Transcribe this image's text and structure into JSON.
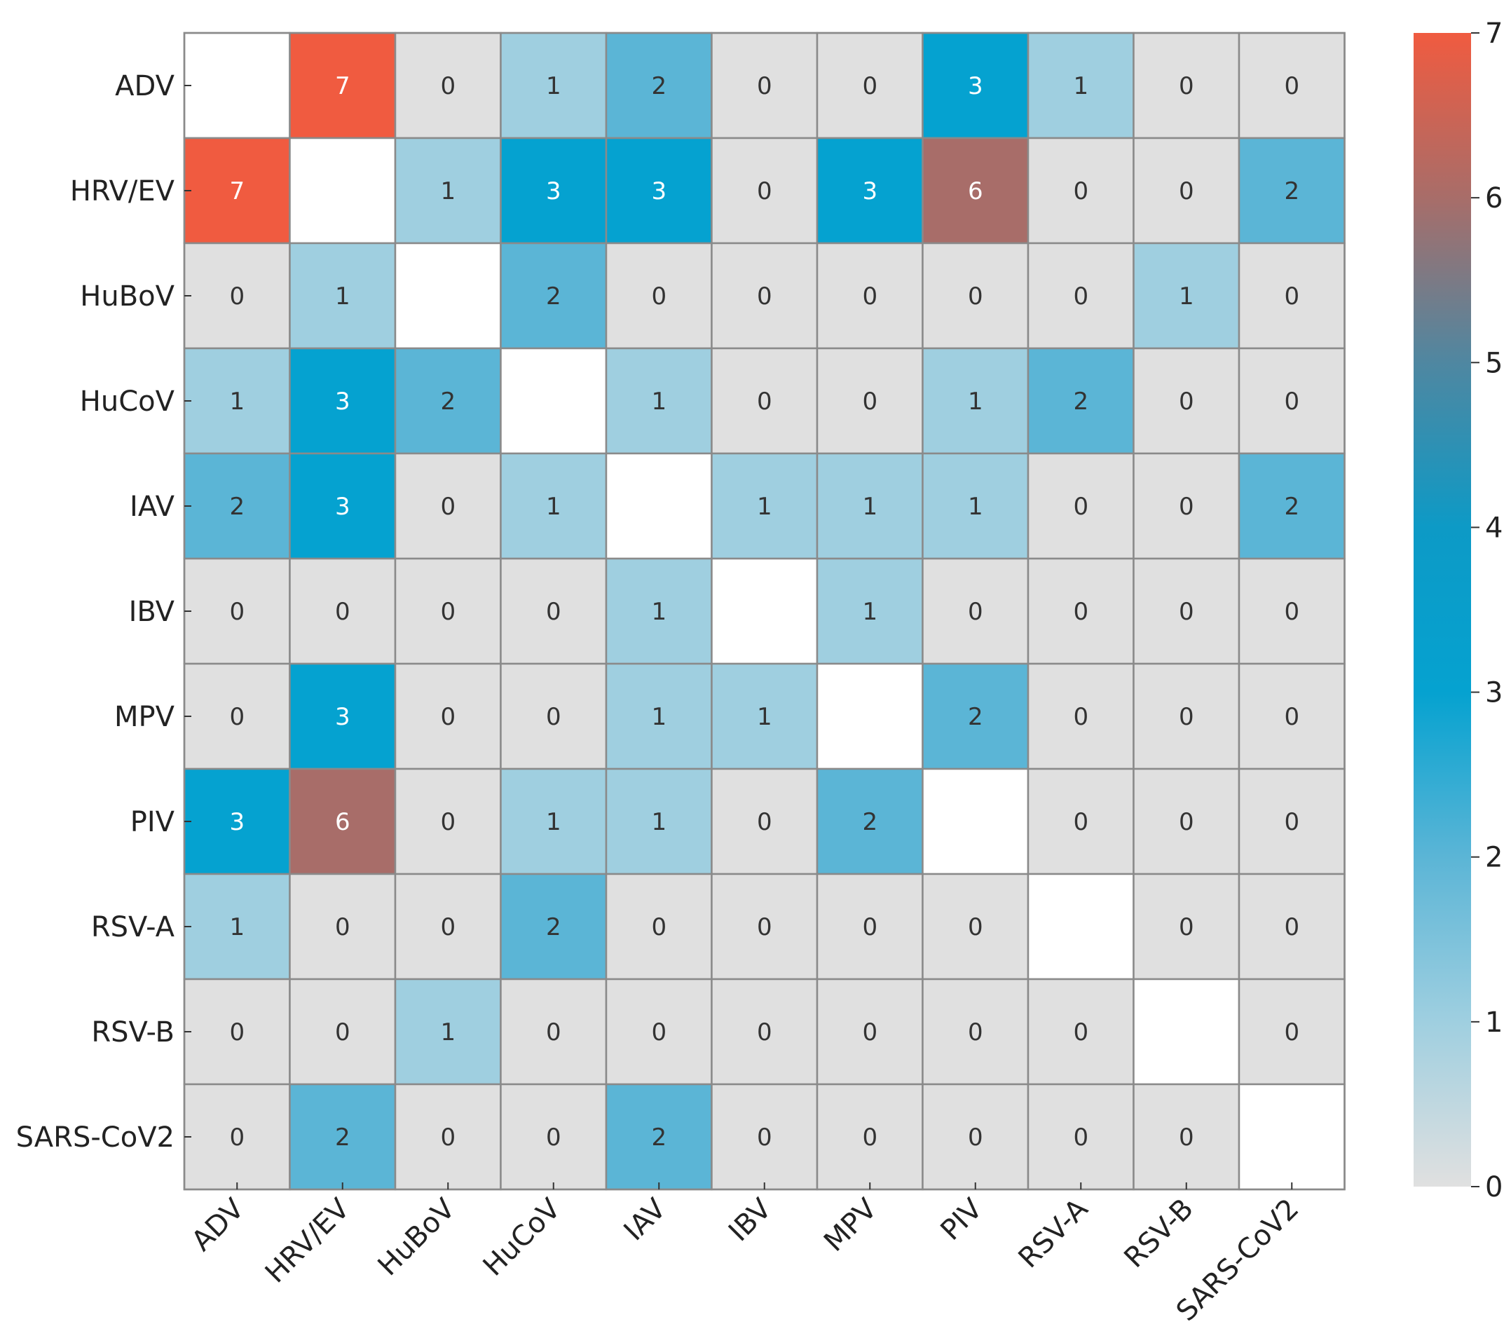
{
  "chart_data": {
    "type": "heatmap",
    "title": "",
    "xlabel": "",
    "ylabel": "",
    "rows": [
      "ADV",
      "HRV/EV",
      "HuBoV",
      "HuCoV",
      "IAV",
      "IBV",
      "MPV",
      "PIV",
      "RSV-A",
      "RSV-B",
      "SARS-CoV2"
    ],
    "columns": [
      "ADV",
      "HRV/EV",
      "HuBoV",
      "HuCoV",
      "IAV",
      "IBV",
      "MPV",
      "PIV",
      "RSV-A",
      "RSV-B",
      "SARS-CoV2"
    ],
    "values": [
      [
        null,
        7,
        0,
        1,
        2,
        0,
        0,
        3,
        1,
        0,
        0
      ],
      [
        7,
        null,
        1,
        3,
        3,
        0,
        3,
        6,
        0,
        0,
        2
      ],
      [
        0,
        1,
        null,
        2,
        0,
        0,
        0,
        0,
        0,
        1,
        0
      ],
      [
        1,
        3,
        2,
        null,
        1,
        0,
        0,
        1,
        2,
        0,
        0
      ],
      [
        2,
        3,
        0,
        1,
        null,
        1,
        1,
        1,
        0,
        0,
        2
      ],
      [
        0,
        0,
        0,
        0,
        1,
        null,
        1,
        0,
        0,
        0,
        0
      ],
      [
        0,
        3,
        0,
        0,
        1,
        1,
        null,
        2,
        0,
        0,
        0
      ],
      [
        3,
        6,
        0,
        1,
        1,
        0,
        2,
        null,
        0,
        0,
        0
      ],
      [
        1,
        0,
        0,
        2,
        0,
        0,
        0,
        0,
        null,
        0,
        0
      ],
      [
        0,
        0,
        1,
        0,
        0,
        0,
        0,
        0,
        0,
        null,
        0
      ],
      [
        0,
        2,
        0,
        0,
        2,
        0,
        0,
        0,
        0,
        0,
        null
      ]
    ],
    "colorbar": {
      "min": 0,
      "max": 7,
      "ticks": [
        0,
        1,
        2,
        3,
        4,
        5,
        6,
        7
      ],
      "stops": [
        {
          "value": 0,
          "color": "#e0e0e0"
        },
        {
          "value": 1,
          "color": "#9fcfe0"
        },
        {
          "value": 2,
          "color": "#5bb5d6"
        },
        {
          "value": 3,
          "color": "#05a2d0"
        },
        {
          "value": 4,
          "color": "#0d9ac6"
        },
        {
          "value": 5,
          "color": "#4f87a1"
        },
        {
          "value": 6,
          "color": "#a86d69"
        },
        {
          "value": 7,
          "color": "#f05b40"
        }
      ]
    },
    "legend": "right"
  }
}
